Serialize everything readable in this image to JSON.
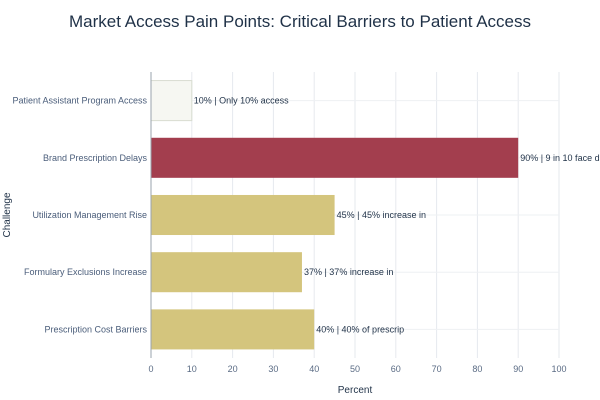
{
  "chart_data": {
    "type": "bar",
    "orientation": "horizontal",
    "title": "Market Access Pain Points: Critical Barriers to Patient Access",
    "xlabel": "Percent",
    "ylabel": "Challenge",
    "xlim": [
      0,
      100
    ],
    "xticks": [
      0,
      10,
      20,
      30,
      40,
      50,
      60,
      70,
      80,
      90,
      100
    ],
    "grid": true,
    "categories": [
      "Patient Assistant Program Access",
      "Brand Prescription Delays",
      "Utilization Management Rise",
      "Formulary Exclusions Increase",
      "Prescription Cost Barriers"
    ],
    "values": [
      10,
      90,
      45,
      37,
      40
    ],
    "data_labels": [
      "10% | Only 10% access",
      "90% | 9 in 10 face de",
      "45% | 45% increase in",
      "37% | 37% increase in",
      "40% | 40% of prescrip"
    ],
    "colors": [
      "#f6f7f2",
      "#a33e4e",
      "#d4c57d",
      "#d4c57d",
      "#d4c57d"
    ]
  }
}
